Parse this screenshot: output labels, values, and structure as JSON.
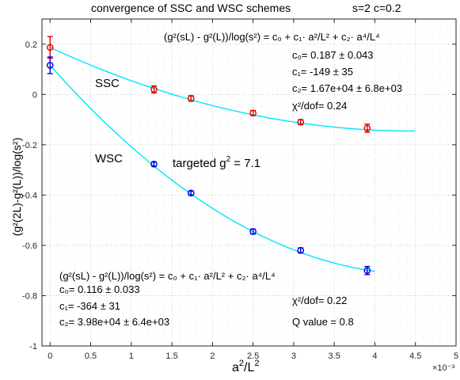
{
  "chart_data": {
    "type": "scatter",
    "title": "convergence of SSC and WSC schemes",
    "title_params": "s=2   c=0.2",
    "xlabel_base": "a",
    "xlabel_sup1": "2",
    "xlabel_mid": "/L",
    "xlabel_sup2": "2",
    "ylabel": "(g²(2L)-g²(L))/log(s²)",
    "x_exponent_label": "×10⁻³",
    "xlim": [
      -0.0001,
      0.005
    ],
    "ylim": [
      -1,
      0.3
    ],
    "x_ticks": [
      0,
      0.0005,
      0.001,
      0.0015,
      0.002,
      0.0025,
      0.003,
      0.0035,
      0.004,
      0.0045,
      0.005
    ],
    "x_tick_labels": [
      "0",
      "0.5",
      "1",
      "1.5",
      "2",
      "2.5",
      "3",
      "3.5",
      "4",
      "4.5",
      "5"
    ],
    "y_ticks": [
      -1,
      -0.8,
      -0.6,
      -0.4,
      -0.2,
      0,
      0.2
    ],
    "y_tick_labels": [
      "-1",
      "-0.8",
      "-0.6",
      "-0.4",
      "-0.2",
      "0",
      "0.2"
    ],
    "grid": true,
    "fit_color": "#00e5ff",
    "series": [
      {
        "name": "SSC",
        "color": "#e00000",
        "x": [
          0,
          0.00128,
          0.001736,
          0.0025,
          0.003086,
          0.003906
        ],
        "y": [
          0.187,
          0.02,
          -0.016,
          -0.074,
          -0.11,
          -0.134
        ],
        "err": [
          0.043,
          0.014,
          0.011,
          0.01,
          0.01,
          0.016
        ],
        "fit": {
          "c0": 0.187,
          "c1": -149,
          "c2": 16700,
          "x_range": [
            0,
            0.0045
          ]
        }
      },
      {
        "name": "WSC",
        "color": "#0000e0",
        "x": [
          0,
          0.00128,
          0.001736,
          0.0025,
          0.003086,
          0.003906
        ],
        "y": [
          0.116,
          -0.277,
          -0.392,
          -0.545,
          -0.62,
          -0.7
        ],
        "err": [
          0.033,
          0.008,
          0.008,
          0.01,
          0.01,
          0.016
        ],
        "fit": {
          "c0": 0.116,
          "c1": -364,
          "c2": 39800,
          "x_range": [
            0,
            0.004
          ]
        }
      }
    ],
    "annotations": {
      "ssc_label": "SSC",
      "wsc_label": "WSC",
      "targeted": "targeted g",
      "targeted_sup": "2",
      "targeted_val": " = 7.1",
      "formula_upper": "(g²(sL) - g²(L))/log(s²) = c₀ + c₁· a²/L² + c₂· a⁴/L⁴",
      "formula_lower": "(g²(sL) - g²(L))/log(s²) = c₀ + c₁· a²/L² + c₂· a⁴/L⁴",
      "ssc_c0": "c₀=  0.187 ± 0.043",
      "ssc_c1": "c₁=  -149 ± 35",
      "ssc_c2": "c₂=  1.67e+04 ± 6.8e+03",
      "ssc_chi": "χ²/dof= 0.24",
      "wsc_c0": "c₀=  0.116 ± 0.033",
      "wsc_c1": "c₁=  -364 ± 31",
      "wsc_c2": "c₂=  3.98e+04 ± 6.4e+03",
      "wsc_chi": "χ²/dof= 0.22",
      "wsc_q": "Q value = 0.8"
    }
  }
}
